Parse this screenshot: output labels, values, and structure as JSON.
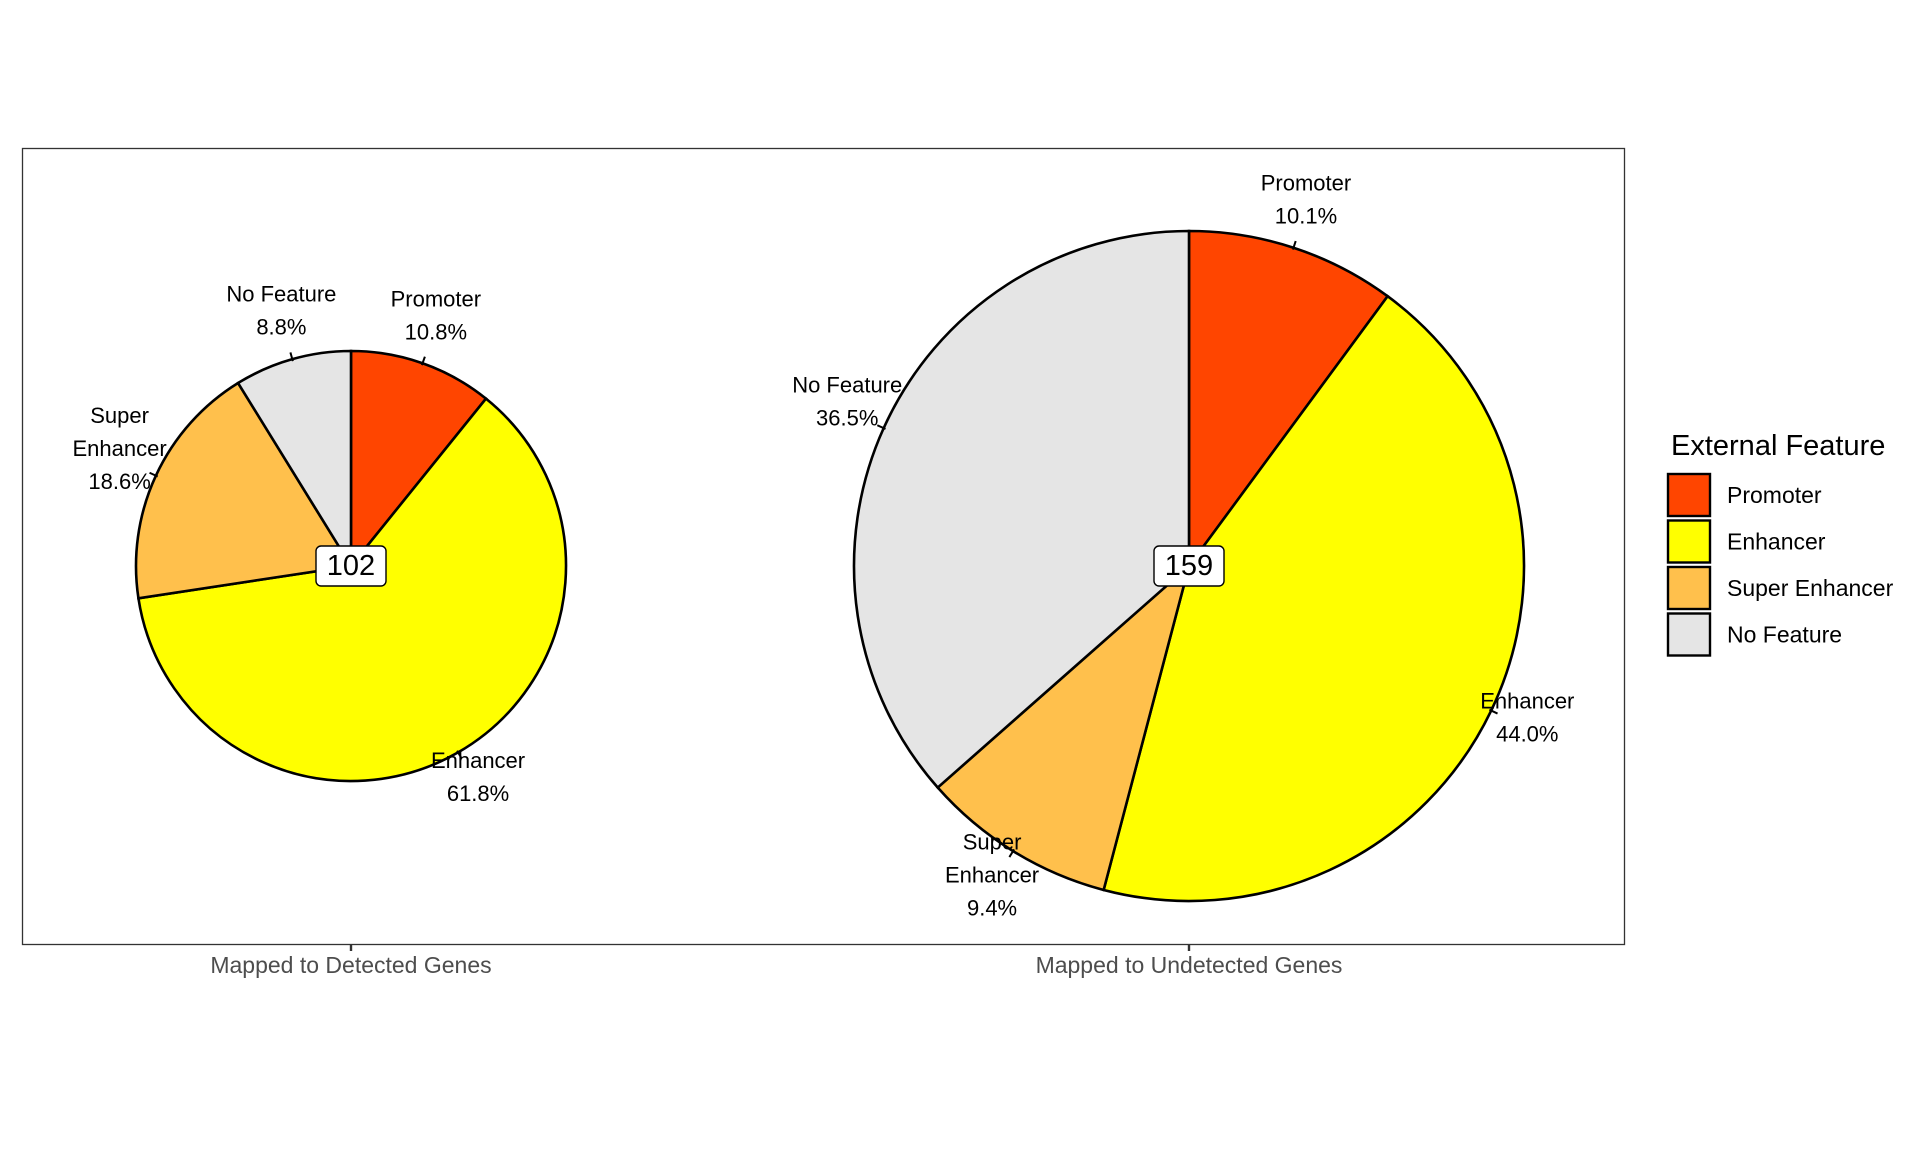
{
  "chart_data": {
    "type": "pie",
    "legend": {
      "title": "External Feature",
      "position": "right",
      "entries": [
        {
          "label": "Promoter",
          "color": "#FF4500"
        },
        {
          "label": "Enhancer",
          "color": "#FFFF00"
        },
        {
          "label": "Super Enhancer",
          "color": "#FFC04C"
        },
        {
          "label": "No Feature",
          "color": "#E5E5E5"
        }
      ]
    },
    "categories": [
      "Promoter",
      "Enhancer",
      "Super Enhancer",
      "No Feature"
    ],
    "panels": [
      {
        "xlabel": "Mapped to Detected Genes",
        "total": "102",
        "values": [
          10.8,
          61.8,
          18.6,
          8.8
        ],
        "labels": [
          [
            "Promoter",
            "10.8%"
          ],
          [
            "Enhancer",
            "61.8%"
          ],
          [
            "Super",
            "Enhancer",
            "18.6%"
          ],
          [
            "No Feature",
            "8.8%"
          ]
        ]
      },
      {
        "xlabel": "Mapped to Undetected Genes",
        "total": "159",
        "values": [
          10.1,
          44.0,
          9.4,
          36.5
        ],
        "labels": [
          [
            "Promoter",
            "10.1%"
          ],
          [
            "Enhancer",
            "44.0%"
          ],
          [
            "Super",
            "Enhancer",
            "9.4%"
          ],
          [
            "No Feature",
            "36.5%"
          ]
        ]
      }
    ]
  }
}
